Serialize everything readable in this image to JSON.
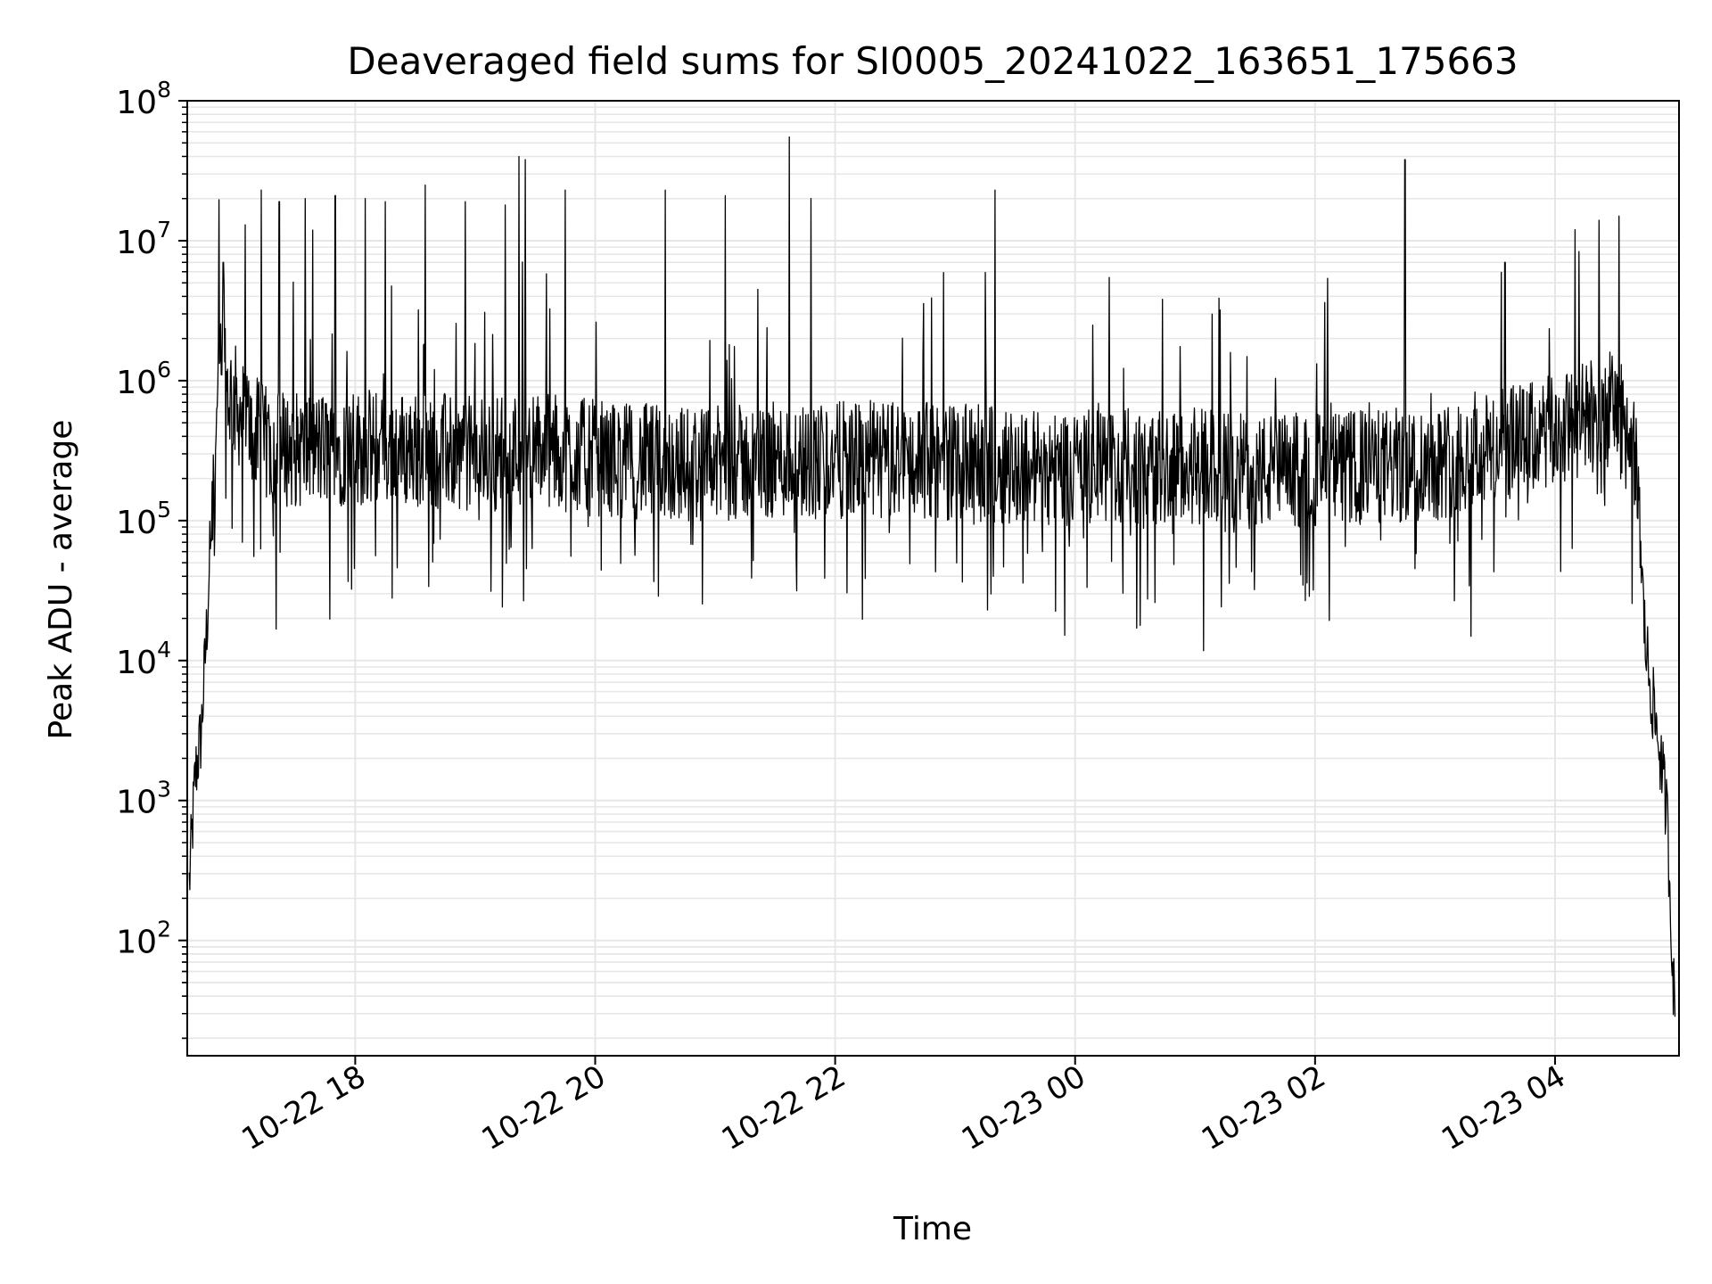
{
  "chart_data": {
    "type": "line",
    "title": "Deaveraged field sums for SI0005_20241022_163651_175663",
    "xlabel": "Time",
    "ylabel": "Peak ADU - average",
    "yscale": "log",
    "ylim": [
      15,
      100000000
    ],
    "xlim": [
      "2024-10-22T16:36",
      "2024-10-23T05:02"
    ],
    "grid": true,
    "line_color": "#000000",
    "grid_color": "#e6e6e6",
    "x_ticks": [
      {
        "label": "10-22 18",
        "t": "2024-10-22T18:00"
      },
      {
        "label": "10-22 20",
        "t": "2024-10-22T20:00"
      },
      {
        "label": "10-22 22",
        "t": "2024-10-22T22:00"
      },
      {
        "label": "10-23 00",
        "t": "2024-10-23T00:00"
      },
      {
        "label": "10-23 02",
        "t": "2024-10-23T02:00"
      },
      {
        "label": "10-23 04",
        "t": "2024-10-23T04:00"
      }
    ],
    "y_ticks": [
      {
        "base": "10",
        "exp": "2",
        "value": 100
      },
      {
        "base": "10",
        "exp": "3",
        "value": 1000
      },
      {
        "base": "10",
        "exp": "4",
        "value": 10000
      },
      {
        "base": "10",
        "exp": "5",
        "value": 100000
      },
      {
        "base": "10",
        "exp": "6",
        "value": 1000000
      },
      {
        "base": "10",
        "exp": "7",
        "value": 10000000
      },
      {
        "base": "10",
        "exp": "8",
        "value": 100000000
      }
    ],
    "series": [
      {
        "values": [
          [
            "2024-10-22T16:37",
            250
          ],
          [
            "2024-10-22T16:40",
            1500
          ],
          [
            "2024-10-22T16:43",
            3000
          ],
          [
            "2024-10-22T16:46",
            20000
          ],
          [
            "2024-10-22T16:49",
            200000
          ],
          [
            "2024-10-22T16:52",
            1000000
          ],
          [
            "2024-10-22T16:55",
            900000
          ],
          [
            "2024-10-22T17:00",
            700000
          ],
          [
            "2024-10-22T17:05",
            500000
          ],
          [
            "2024-10-22T17:15",
            350000
          ],
          [
            "2024-10-22T17:30",
            320000
          ],
          [
            "2024-10-22T18:00",
            330000
          ],
          [
            "2024-10-22T18:30",
            320000
          ],
          [
            "2024-10-22T19:00",
            300000
          ],
          [
            "2024-10-22T19:30",
            330000
          ],
          [
            "2024-10-22T20:00",
            280000
          ],
          [
            "2024-10-22T20:30",
            260000
          ],
          [
            "2024-10-22T21:00",
            250000
          ],
          [
            "2024-10-22T21:30",
            270000
          ],
          [
            "2024-10-22T22:00",
            270000
          ],
          [
            "2024-10-22T22:30",
            280000
          ],
          [
            "2024-10-22T23:00",
            260000
          ],
          [
            "2024-10-22T23:30",
            250000
          ],
          [
            "2024-10-23T00:00",
            240000
          ],
          [
            "2024-10-23T00:30",
            240000
          ],
          [
            "2024-10-23T01:00",
            250000
          ],
          [
            "2024-10-23T01:30",
            220000
          ],
          [
            "2024-10-23T02:00",
            230000
          ],
          [
            "2024-10-23T02:30",
            240000
          ],
          [
            "2024-10-23T03:00",
            260000
          ],
          [
            "2024-10-23T03:30",
            330000
          ],
          [
            "2024-10-23T04:00",
            420000
          ],
          [
            "2024-10-23T04:30",
            650000
          ],
          [
            "2024-10-23T04:40",
            300000
          ],
          [
            "2024-10-23T04:45",
            15000
          ],
          [
            "2024-10-23T04:48",
            6000
          ],
          [
            "2024-10-23T04:52",
            2500
          ],
          [
            "2024-10-23T04:56",
            800
          ],
          [
            "2024-10-23T04:58",
            150
          ],
          [
            "2024-10-23T05:00",
            25
          ]
        ]
      }
    ],
    "spikes": [
      [
        "2024-10-22T16:54",
        7000000
      ],
      [
        "2024-10-22T17:05",
        13000000
      ],
      [
        "2024-10-22T17:13",
        23000000
      ],
      [
        "2024-10-22T17:22",
        19000000
      ],
      [
        "2024-10-22T17:35",
        20000000
      ],
      [
        "2024-10-22T17:50",
        21000000
      ],
      [
        "2024-10-22T18:05",
        20000000
      ],
      [
        "2024-10-22T18:15",
        19000000
      ],
      [
        "2024-10-22T18:35",
        25000000
      ],
      [
        "2024-10-22T18:55",
        19000000
      ],
      [
        "2024-10-22T19:15",
        18000000
      ],
      [
        "2024-10-22T19:22",
        40000000
      ],
      [
        "2024-10-22T19:25",
        38000000
      ],
      [
        "2024-10-22T19:45",
        23000000
      ],
      [
        "2024-10-22T20:35",
        23000000
      ],
      [
        "2024-10-22T21:05",
        21000000
      ],
      [
        "2024-10-22T21:37",
        55000000
      ],
      [
        "2024-10-22T21:48",
        20000000
      ],
      [
        "2024-10-22T23:20",
        23000000
      ],
      [
        "2024-10-23T02:45",
        38000000
      ],
      [
        "2024-10-23T03:35",
        7000000
      ],
      [
        "2024-10-23T04:10",
        12000000
      ],
      [
        "2024-10-23T04:22",
        14000000
      ],
      [
        "2024-10-23T04:32",
        15000000
      ]
    ]
  }
}
